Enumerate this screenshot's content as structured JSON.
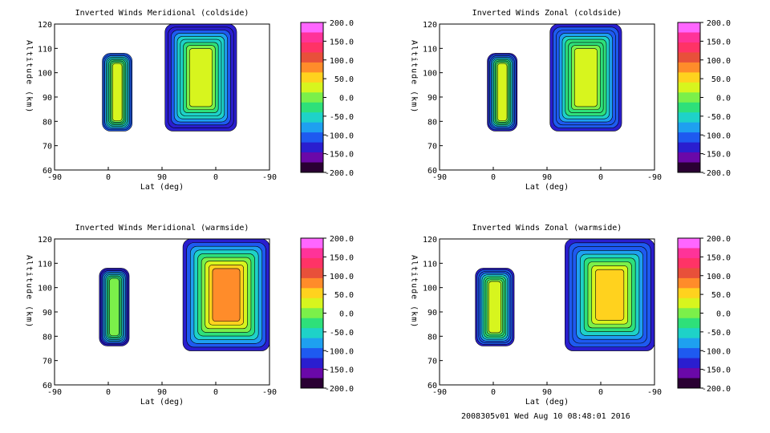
{
  "chart_data": [
    {
      "type": "heatmap",
      "title": "Inverted Winds Meridional (coldside)",
      "xlabel": "Lat (deg)",
      "ylabel": "Altitude (km)",
      "x_ticks": [
        "-90",
        "0",
        "90",
        "0",
        "-90"
      ],
      "y_ticks": [
        "60",
        "70",
        "80",
        "90",
        "100",
        "110",
        "120"
      ],
      "ylim": [
        60,
        120
      ],
      "colorbar_labels": [
        "200.0",
        "150.0",
        "100.0",
        "50.0",
        "0.0",
        "-50.0",
        "-100.0",
        "-150.0",
        "-200.0"
      ],
      "colorbar_range": [
        -200,
        200
      ],
      "regions": [
        {
          "x": [
            -10,
            40
          ],
          "y": [
            76,
            108
          ],
          "value_range": [
            -120,
            20
          ]
        },
        {
          "x": [
            95,
            215
          ],
          "y": [
            76,
            120
          ],
          "value_range": [
            -150,
            20
          ]
        }
      ]
    },
    {
      "type": "heatmap",
      "title": "Inverted Winds Zonal (coldside)",
      "xlabel": "Lat (deg)",
      "ylabel": "Altitude (km)",
      "x_ticks": [
        "-90",
        "0",
        "90",
        "0",
        "-90"
      ],
      "y_ticks": [
        "60",
        "70",
        "80",
        "90",
        "100",
        "110",
        "120"
      ],
      "ylim": [
        60,
        120
      ],
      "colorbar_labels": [
        "200.0",
        "150.0",
        "100.0",
        "50.0",
        "0.0",
        "-50.0",
        "-100.0",
        "-150.0",
        "-200.0"
      ],
      "colorbar_range": [
        -200,
        200
      ],
      "regions": [
        {
          "x": [
            -10,
            40
          ],
          "y": [
            76,
            108
          ],
          "value_range": [
            -150,
            30
          ]
        },
        {
          "x": [
            95,
            215
          ],
          "y": [
            76,
            120
          ],
          "value_range": [
            -150,
            30
          ]
        }
      ]
    },
    {
      "type": "heatmap",
      "title": "Inverted Winds Meridional (warmside)",
      "xlabel": "Lat (deg)",
      "ylabel": "Altitude (km)",
      "x_ticks": [
        "-90",
        "0",
        "90",
        "0",
        "-90"
      ],
      "y_ticks": [
        "60",
        "70",
        "80",
        "90",
        "100",
        "110",
        "120"
      ],
      "ylim": [
        60,
        120
      ],
      "colorbar_labels": [
        "200.0",
        "150.0",
        "100.0",
        "50.0",
        "0.0",
        "-50.0",
        "-100.0",
        "-150.0",
        "-200.0"
      ],
      "colorbar_range": [
        -200,
        200
      ],
      "regions": [
        {
          "x": [
            -15,
            35
          ],
          "y": [
            76,
            108
          ],
          "value_range": [
            -150,
            0
          ]
        },
        {
          "x": [
            125,
            270
          ],
          "y": [
            74,
            120
          ],
          "value_range": [
            -150,
            100
          ]
        }
      ]
    },
    {
      "type": "heatmap",
      "title": "Inverted Winds Zonal (warmside)",
      "xlabel": "Lat (deg)",
      "ylabel": "Altitude (km)",
      "x_ticks": [
        "-90",
        "0",
        "90",
        "0",
        "-90"
      ],
      "y_ticks": [
        "60",
        "70",
        "80",
        "90",
        "100",
        "110",
        "120"
      ],
      "ylim": [
        60,
        120
      ],
      "colorbar_labels": [
        "200.0",
        "150.0",
        "100.0",
        "50.0",
        "0.0",
        "-50.0",
        "-100.0",
        "-150.0",
        "-200.0"
      ],
      "colorbar_range": [
        -200,
        200
      ],
      "regions": [
        {
          "x": [
            -30,
            35
          ],
          "y": [
            76,
            108
          ],
          "value_range": [
            -150,
            30
          ]
        },
        {
          "x": [
            120,
            270
          ],
          "y": [
            74,
            120
          ],
          "value_range": [
            -150,
            50
          ]
        }
      ]
    }
  ],
  "colormap": [
    "#ff66ff",
    "#ff3399",
    "#ff3366",
    "#e8503a",
    "#ff8c2a",
    "#ffd21e",
    "#d7f51e",
    "#7bf04a",
    "#2ee07a",
    "#1ed2c8",
    "#1ea0f0",
    "#1e5af0",
    "#2a1ecf",
    "#6a08a8",
    "#2a0033"
  ],
  "footer_text": "2008305v01 Wed Aug 10 08:48:01 2016"
}
